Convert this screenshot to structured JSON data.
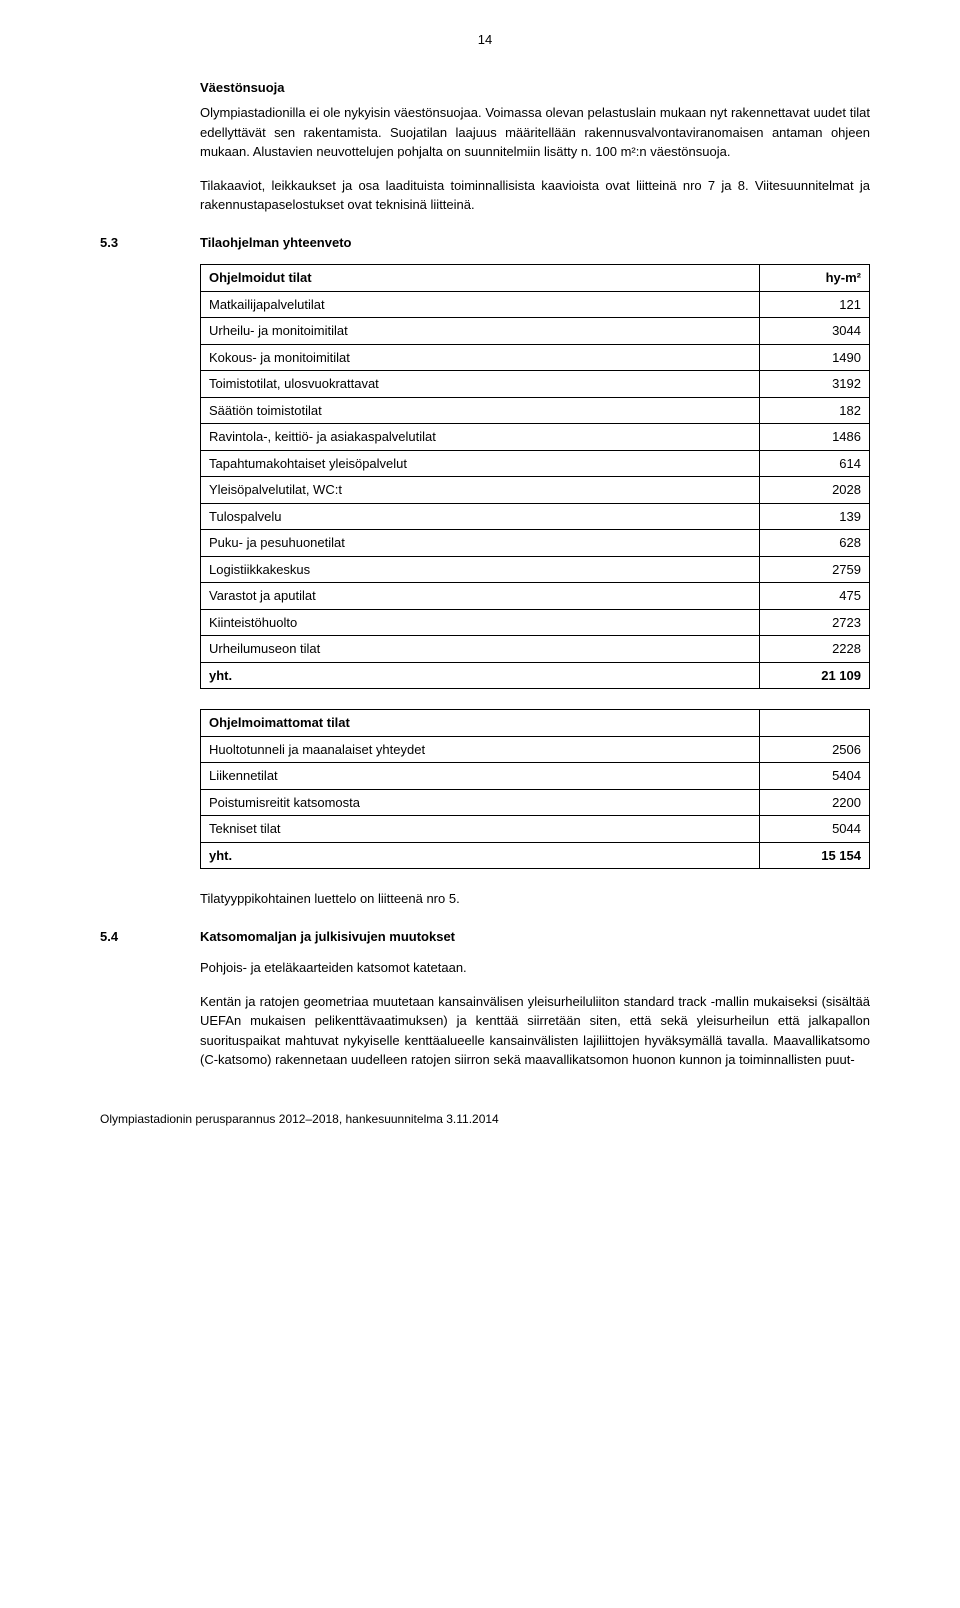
{
  "page_number": "14",
  "section_a": {
    "heading": "Väestönsuoja",
    "p1": "Olympiastadionilla ei ole nykyisin väestönsuojaa. Voimassa olevan pelastuslain mukaan nyt rakennettavat uudet tilat edellyttävät sen rakentamista. Suojatilan laajuus määritellään rakennusvalvontaviranomaisen antaman ohjeen mukaan. Alustavien neuvottelujen pohjalta on suunnitelmiin lisätty n. 100 m²:n väestönsuoja.",
    "p2": "Tilakaaviot, leikkaukset ja osa laadituista toiminnallisista kaavioista ovat liitteinä nro 7 ja 8. Viitesuunnitelmat ja rakennustapaselostukset ovat teknisinä liitteinä."
  },
  "section_53": {
    "num": "5.3",
    "title": "Tilaohjelman yhteenveto",
    "table1": {
      "header": {
        "label": "Ohjelmoidut tilat",
        "unit": "hy-m²"
      },
      "rows": [
        {
          "label": "Matkailijapalvelutilat",
          "value": "121"
        },
        {
          "label": "Urheilu- ja monitoimitilat",
          "value": "3044"
        },
        {
          "label": "Kokous- ja monitoimitilat",
          "value": "1490"
        },
        {
          "label": "Toimistotilat, ulosvuokrattavat",
          "value": "3192"
        },
        {
          "label": "Säätiön toimistotilat",
          "value": "182"
        },
        {
          "label": "Ravintola-, keittiö- ja asiakaspalvelutilat",
          "value": "1486"
        },
        {
          "label": "Tapahtumakohtaiset yleisöpalvelut",
          "value": "614"
        },
        {
          "label": "Yleisöpalvelutilat, WC:t",
          "value": "2028"
        },
        {
          "label": "Tulospalvelu",
          "value": "139"
        },
        {
          "label": "Puku- ja pesuhuonetilat",
          "value": "628"
        },
        {
          "label": "Logistiikkakeskus",
          "value": "2759"
        },
        {
          "label": "Varastot ja aputilat",
          "value": "475"
        },
        {
          "label": "Kiinteistöhuolto",
          "value": "2723"
        },
        {
          "label": "Urheilumuseon tilat",
          "value": "2228"
        }
      ],
      "total": {
        "label": "yht.",
        "value": "21 109"
      }
    },
    "table2": {
      "header": {
        "label": "Ohjelmoimattomat tilat"
      },
      "rows": [
        {
          "label": "Huoltotunneli ja maanalaiset yhteydet",
          "value": "2506"
        },
        {
          "label": "Liikennetilat",
          "value": "5404"
        },
        {
          "label": "Poistumisreitit katsomosta",
          "value": "2200"
        },
        {
          "label": "Tekniset tilat",
          "value": "5044"
        }
      ],
      "total": {
        "label": "yht.",
        "value": "15 154"
      }
    },
    "after": "Tilatyyppikohtainen luettelo on liitteenä nro 5."
  },
  "section_54": {
    "num": "5.4",
    "title": "Katsomomaljan ja julkisivujen muutokset",
    "p1": "Pohjois- ja eteläkaarteiden katsomot katetaan.",
    "p2": "Kentän ja ratojen geometriaa muutetaan kansainvälisen yleisurheiluliiton standard track -mallin mukaiseksi (sisältää UEFAn mukaisen pelikenttävaatimuksen) ja kenttää siirretään siten, että sekä yleisurheilun että jalkapallon suorituspaikat mahtuvat nykyiselle kenttäalueelle kansainvälisten lajiliittojen hyväksymällä tavalla. Maavallikatsomo (C-katsomo) rakennetaan uudelleen ratojen siirron sekä maavallikatsomon huonon kunnon ja toiminnallisten puut-"
  },
  "footer": "Olympiastadionin perusparannus 2012–2018, hankesuunnitelma 3.11.2014"
}
